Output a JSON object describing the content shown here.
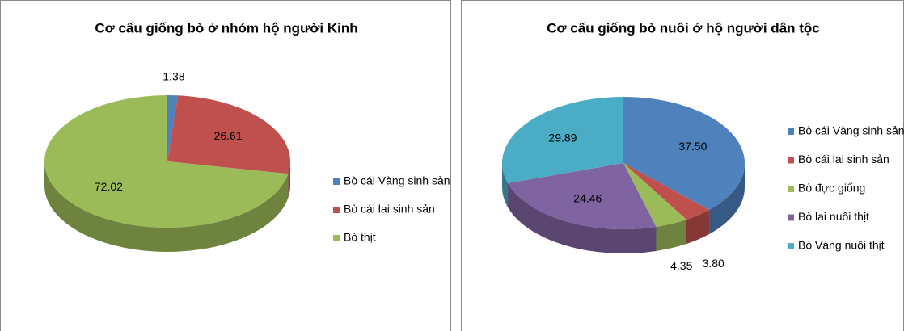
{
  "chart_data": [
    {
      "type": "pie",
      "title": "Cơ cấu giống bò ở nhóm hộ người Kinh",
      "categories": [
        "Bò cái Vàng sinh sản",
        "Bò cái lai sinh sản",
        "Bò thịt"
      ],
      "values": [
        1.38,
        26.61,
        72.02
      ],
      "colors": [
        "#4f81bd",
        "#c0504d",
        "#9bbb59"
      ],
      "legend": "right"
    },
    {
      "type": "pie",
      "title": "Cơ cấu giống bò nuôi ở hộ người dân tộc",
      "categories": [
        "Bò cái Vàng sinh sản",
        "Bò cái lai sinh sản",
        "Bò đực giống",
        "Bò lai nuôi thịt",
        "Bò Vàng nuôi thịt"
      ],
      "values": [
        37.5,
        3.8,
        4.35,
        24.46,
        29.89
      ],
      "value_labels": [
        "37.50",
        "3.80",
        "4.35",
        "24.46",
        "29.89"
      ],
      "colors": [
        "#4f81bd",
        "#c0504d",
        "#9bbb59",
        "#8064a2",
        "#4bacc6"
      ],
      "legend": "right"
    }
  ]
}
